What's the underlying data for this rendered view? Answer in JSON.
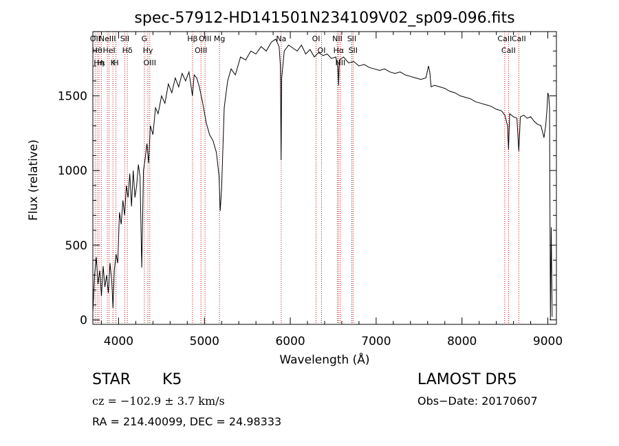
{
  "chart_data": {
    "type": "line",
    "title": "spec-57912-HD141501N234109V02_sp09-096.fits",
    "xlabel": "Wavelength (Å)",
    "ylabel": "Flux (relative)",
    "xlim": [
      3700,
      9100
    ],
    "ylim": [
      -30,
      1930
    ],
    "x_ticks": [
      4000,
      5000,
      6000,
      7000,
      8000,
      9000
    ],
    "x_tick_labels": [
      "4000",
      "5000",
      "6000",
      "7000",
      "8000",
      "9000"
    ],
    "y_ticks": [
      0,
      500,
      1000,
      1500
    ],
    "y_tick_labels": [
      "0",
      "500",
      "1000",
      "1500"
    ],
    "grid": false,
    "series": [
      {
        "color": "#000000",
        "points": [
          [
            3700,
            50
          ],
          [
            3720,
            300
          ],
          [
            3740,
            420
          ],
          [
            3760,
            240
          ],
          [
            3780,
            330
          ],
          [
            3800,
            160
          ],
          [
            3820,
            360
          ],
          [
            3840,
            220
          ],
          [
            3860,
            300
          ],
          [
            3880,
            180
          ],
          [
            3900,
            380
          ],
          [
            3920,
            260
          ],
          [
            3935,
            80
          ],
          [
            3950,
            330
          ],
          [
            3970,
            440
          ],
          [
            3990,
            380
          ],
          [
            4010,
            720
          ],
          [
            4030,
            640
          ],
          [
            4050,
            800
          ],
          [
            4070,
            700
          ],
          [
            4090,
            900
          ],
          [
            4110,
            820
          ],
          [
            4130,
            980
          ],
          [
            4150,
            760
          ],
          [
            4170,
            1000
          ],
          [
            4190,
            820
          ],
          [
            4210,
            900
          ],
          [
            4230,
            1040
          ],
          [
            4250,
            960
          ],
          [
            4270,
            350
          ],
          [
            4290,
            1000
          ],
          [
            4310,
            1080
          ],
          [
            4330,
            1180
          ],
          [
            4350,
            1050
          ],
          [
            4370,
            1300
          ],
          [
            4400,
            1240
          ],
          [
            4430,
            1420
          ],
          [
            4460,
            1380
          ],
          [
            4500,
            1500
          ],
          [
            4540,
            1450
          ],
          [
            4580,
            1580
          ],
          [
            4620,
            1520
          ],
          [
            4660,
            1620
          ],
          [
            4700,
            1560
          ],
          [
            4740,
            1650
          ],
          [
            4780,
            1600
          ],
          [
            4820,
            1660
          ],
          [
            4860,
            1500
          ],
          [
            4880,
            1640
          ],
          [
            4910,
            1620
          ],
          [
            4940,
            1560
          ],
          [
            4980,
            1450
          ],
          [
            5020,
            1320
          ],
          [
            5060,
            1240
          ],
          [
            5100,
            1200
          ],
          [
            5140,
            1120
          ],
          [
            5170,
            960
          ],
          [
            5184,
            730
          ],
          [
            5200,
            880
          ],
          [
            5230,
            1420
          ],
          [
            5270,
            1600
          ],
          [
            5310,
            1680
          ],
          [
            5360,
            1640
          ],
          [
            5420,
            1760
          ],
          [
            5480,
            1740
          ],
          [
            5540,
            1800
          ],
          [
            5600,
            1780
          ],
          [
            5660,
            1830
          ],
          [
            5720,
            1800
          ],
          [
            5780,
            1860
          ],
          [
            5830,
            1880
          ],
          [
            5870,
            1830
          ],
          [
            5885,
            1700
          ],
          [
            5893,
            1070
          ],
          [
            5900,
            1620
          ],
          [
            5930,
            1800
          ],
          [
            5980,
            1840
          ],
          [
            6030,
            1820
          ],
          [
            6080,
            1800
          ],
          [
            6130,
            1840
          ],
          [
            6180,
            1780
          ],
          [
            6230,
            1810
          ],
          [
            6280,
            1760
          ],
          [
            6330,
            1790
          ],
          [
            6380,
            1770
          ],
          [
            6430,
            1780
          ],
          [
            6480,
            1750
          ],
          [
            6530,
            1760
          ],
          [
            6555,
            1690
          ],
          [
            6563,
            1570
          ],
          [
            6572,
            1740
          ],
          [
            6620,
            1760
          ],
          [
            6680,
            1720
          ],
          [
            6740,
            1730
          ],
          [
            6800,
            1700
          ],
          [
            6860,
            1710
          ],
          [
            6920,
            1690
          ],
          [
            6980,
            1680
          ],
          [
            7040,
            1670
          ],
          [
            7100,
            1680
          ],
          [
            7160,
            1660
          ],
          [
            7220,
            1650
          ],
          [
            7280,
            1660
          ],
          [
            7340,
            1640
          ],
          [
            7400,
            1630
          ],
          [
            7460,
            1620
          ],
          [
            7520,
            1610
          ],
          [
            7580,
            1620
          ],
          [
            7610,
            1700
          ],
          [
            7625,
            1660
          ],
          [
            7640,
            1560
          ],
          [
            7680,
            1570
          ],
          [
            7740,
            1560
          ],
          [
            7800,
            1550
          ],
          [
            7860,
            1530
          ],
          [
            7920,
            1520
          ],
          [
            7980,
            1500
          ],
          [
            8040,
            1490
          ],
          [
            8100,
            1480
          ],
          [
            8160,
            1460
          ],
          [
            8220,
            1450
          ],
          [
            8280,
            1440
          ],
          [
            8340,
            1430
          ],
          [
            8400,
            1410
          ],
          [
            8460,
            1400
          ],
          [
            8500,
            1370
          ],
          [
            8530,
            1300
          ],
          [
            8542,
            1140
          ],
          [
            8555,
            1380
          ],
          [
            8600,
            1360
          ],
          [
            8640,
            1350
          ],
          [
            8662,
            1130
          ],
          [
            8680,
            1360
          ],
          [
            8720,
            1370
          ],
          [
            8760,
            1350
          ],
          [
            8800,
            1360
          ],
          [
            8840,
            1330
          ],
          [
            8880,
            1310
          ],
          [
            8920,
            1300
          ],
          [
            8955,
            1220
          ],
          [
            8975,
            1300
          ],
          [
            8990,
            1410
          ],
          [
            9000,
            1520
          ],
          [
            9010,
            1500
          ],
          [
            9020,
            1420
          ],
          [
            9030,
            0
          ],
          [
            9040,
            620
          ],
          [
            9050,
            20
          ]
        ]
      }
    ],
    "line_labels": [
      {
        "wavelength": 3727,
        "labels": [
          "OII"
        ]
      },
      {
        "wavelength": 3750,
        "labels": [
          "Hθ"
        ]
      },
      {
        "wavelength": 3771,
        "labels": [
          "Hη"
        ]
      },
      {
        "wavelength": 3798,
        "labels": [
          "Hι"
        ]
      },
      {
        "wavelength": 3869,
        "labels": [
          "NeIII"
        ]
      },
      {
        "wavelength": 3889,
        "labels": [
          "HeI"
        ]
      },
      {
        "wavelength": 3934,
        "labels": [
          "K"
        ]
      },
      {
        "wavelength": 3969,
        "labels": [
          "H"
        ]
      },
      {
        "wavelength": 4072,
        "labels": [
          "SII"
        ]
      },
      {
        "wavelength": 4102,
        "labels": [
          "Hδ"
        ]
      },
      {
        "wavelength": 4300,
        "labels": [
          "G"
        ]
      },
      {
        "wavelength": 4341,
        "labels": [
          "Hγ"
        ]
      },
      {
        "wavelength": 4363,
        "labels": [
          "OIII"
        ]
      },
      {
        "wavelength": 4861,
        "labels": [
          "Hβ"
        ]
      },
      {
        "wavelength": 4959,
        "labels": [
          "OIII"
        ]
      },
      {
        "wavelength": 5007,
        "labels": [
          "OIII"
        ]
      },
      {
        "wavelength": 5175,
        "labels": [
          "Mg"
        ]
      },
      {
        "wavelength": 5894,
        "labels": [
          "Na"
        ]
      },
      {
        "wavelength": 6300,
        "labels": [
          "OI"
        ]
      },
      {
        "wavelength": 6364,
        "labels": [
          "OI"
        ]
      },
      {
        "wavelength": 6548,
        "labels": [
          "NII"
        ]
      },
      {
        "wavelength": 6563,
        "labels": [
          "Hα"
        ]
      },
      {
        "wavelength": 6583,
        "labels": [
          "NII"
        ]
      },
      {
        "wavelength": 6716,
        "labels": [
          "SII"
        ]
      },
      {
        "wavelength": 6731,
        "labels": [
          "SII"
        ]
      },
      {
        "wavelength": 8498,
        "labels": [
          "CaII"
        ]
      },
      {
        "wavelength": 8542,
        "labels": [
          "CaII"
        ]
      },
      {
        "wavelength": 8662,
        "labels": [
          "CaII"
        ]
      }
    ],
    "colors": {
      "spectrum": "#000000",
      "line_markers": "#cc0000"
    }
  },
  "info": {
    "object_class": "STAR",
    "subclass": "K5",
    "survey": "LAMOST  DR5",
    "cz": "cz = −102.9 ± 3.7 km/s",
    "obs_date": "Obs−Date: 20170607",
    "coords": "RA = 214.40099, DEC =  24.98333"
  }
}
